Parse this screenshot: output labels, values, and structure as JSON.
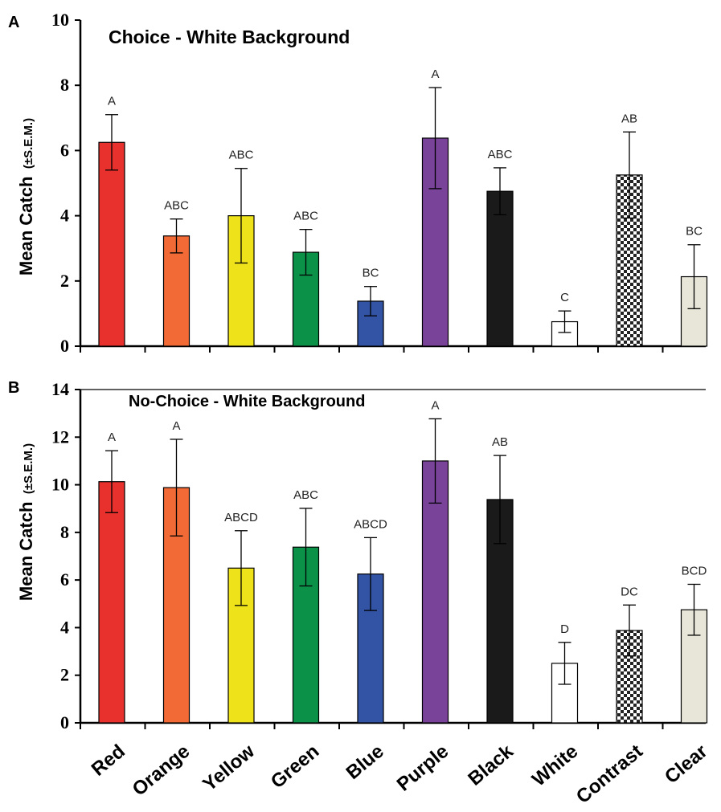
{
  "chart_data": [
    {
      "type": "bar",
      "panel": "A",
      "title": "Choice - White Background",
      "ylabel": "Mean Catch",
      "ylabel_suffix": "(±S.E.M.)",
      "ylim": [
        0,
        10
      ],
      "yticks": [
        0,
        2,
        4,
        6,
        8,
        10
      ],
      "categories": [
        "Red",
        "Orange",
        "Yellow",
        "Green",
        "Blue",
        "Purple",
        "Black",
        "White",
        "Contrast",
        "Clear"
      ],
      "values": [
        6.25,
        3.38,
        4.0,
        2.88,
        1.38,
        6.38,
        4.75,
        0.75,
        5.25,
        2.13
      ],
      "errors": [
        0.85,
        0.52,
        1.45,
        0.7,
        0.45,
        1.55,
        0.72,
        0.33,
        1.32,
        0.98
      ],
      "significance": [
        "A",
        "ABC",
        "ABC",
        "ABC",
        "BC",
        "A",
        "ABC",
        "C",
        "AB",
        "BC"
      ],
      "grid": false
    },
    {
      "type": "bar",
      "panel": "B",
      "title": "No-Choice - White Background",
      "ylabel": "Mean Catch",
      "ylabel_suffix": "(±S.E.M.)",
      "ylim": [
        0,
        14
      ],
      "yticks": [
        0,
        2,
        4,
        6,
        8,
        10,
        12,
        14
      ],
      "categories": [
        "Red",
        "Orange",
        "Yellow",
        "Green",
        "Blue",
        "Purple",
        "Black",
        "White",
        "Contrast",
        "Clear"
      ],
      "values": [
        10.13,
        9.88,
        6.5,
        7.38,
        6.25,
        11.0,
        9.38,
        2.5,
        3.88,
        4.75
      ],
      "errors": [
        1.3,
        2.03,
        1.57,
        1.63,
        1.53,
        1.77,
        1.85,
        0.88,
        1.07,
        1.07
      ],
      "significance": [
        "A",
        "A",
        "ABCD",
        "ABC",
        "ABCD",
        "A",
        "AB",
        "D",
        "DC",
        "BCD"
      ],
      "grid": false
    }
  ],
  "bar_colors": [
    "#e8302c",
    "#f26a35",
    "#eee31a",
    "#0c9149",
    "#3353a5",
    "#7a439a",
    "#1a1a1a",
    "#ffffff",
    "checker",
    "#e8e6d8"
  ]
}
